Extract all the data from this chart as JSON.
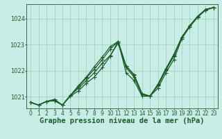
{
  "title": "Graphe pression niveau de la mer (hPa)",
  "background_color": "#c8ece6",
  "grid_color": "#99ccbb",
  "line_color": "#1a5c28",
  "xlim": [
    -0.5,
    23.5
  ],
  "ylim": [
    1020.55,
    1024.55
  ],
  "yticks": [
    1021,
    1022,
    1023,
    1024
  ],
  "xticks": [
    0,
    1,
    2,
    3,
    4,
    5,
    6,
    7,
    8,
    9,
    10,
    11,
    12,
    13,
    14,
    15,
    16,
    17,
    18,
    19,
    20,
    21,
    22,
    23
  ],
  "series": [
    [
      1020.78,
      1020.68,
      1020.82,
      1020.85,
      1020.68,
      1021.05,
      1021.32,
      1021.62,
      1021.92,
      1022.28,
      1022.58,
      1023.05,
      1022.12,
      1021.75,
      1021.08,
      1021.02,
      1021.42,
      1022.02,
      1022.55,
      1023.28,
      1023.72,
      1024.08,
      1024.35,
      1024.42
    ],
    [
      1020.78,
      1020.68,
      1020.82,
      1020.85,
      1020.68,
      1021.05,
      1021.38,
      1021.72,
      1022.05,
      1022.42,
      1022.82,
      1023.12,
      1022.18,
      1021.82,
      1021.12,
      1021.02,
      1021.45,
      1022.05,
      1022.58,
      1023.28,
      1023.72,
      1024.08,
      1024.35,
      1024.42
    ],
    [
      1020.78,
      1020.68,
      1020.82,
      1020.85,
      1020.68,
      1021.05,
      1021.42,
      1021.75,
      1022.15,
      1022.52,
      1022.92,
      1023.12,
      1022.18,
      1021.85,
      1021.12,
      1021.02,
      1021.48,
      1022.08,
      1022.62,
      1023.28,
      1023.72,
      1024.08,
      1024.35,
      1024.42
    ],
    [
      1020.78,
      1020.68,
      1020.82,
      1020.9,
      1020.68,
      1021.02,
      1021.22,
      1021.52,
      1021.75,
      1022.12,
      1022.55,
      1023.12,
      1021.92,
      1021.62,
      1021.02,
      1021.02,
      1021.32,
      1021.92,
      1022.42,
      1023.22,
      1023.68,
      1024.05,
      1024.32,
      1024.42
    ]
  ],
  "xlabel_fontsize": 7.5,
  "tick_fontsize": 5.5,
  "ytick_fontsize": 6.0,
  "marker_size": 2.0,
  "linewidth": 0.9
}
